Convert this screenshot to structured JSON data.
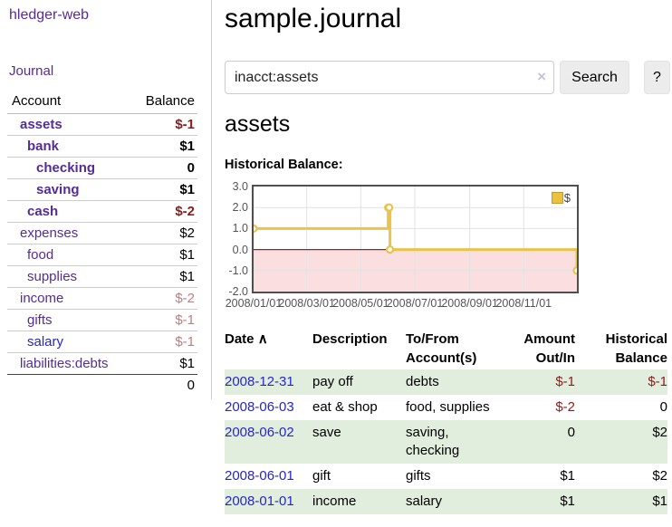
{
  "colors": {
    "link_purple": "#552b9a",
    "link_blue": "#2525d0",
    "negative_dark": "#8f1a1a",
    "negative_light": "#bd7d7d",
    "row_stripe_green": "#e2eedd",
    "chart_gold": "#e9c34c",
    "chart_negative_region_pink": "#fbdfe0",
    "chart_zero_line_red": "#a02222",
    "button_gray": "#ececec"
  },
  "sidebar": {
    "title": "hledger-web",
    "journal_link": "Journal",
    "accounts": {
      "headers": {
        "account": "Account",
        "balance": "Balance"
      },
      "rows": [
        {
          "name": "assets",
          "balance": "$-1"
        },
        {
          "name": "bank",
          "balance": "$1"
        },
        {
          "name": "checking",
          "balance": "0"
        },
        {
          "name": "saving",
          "balance": "$1"
        },
        {
          "name": "cash",
          "balance": "$-2"
        },
        {
          "name": "expenses",
          "balance": "$2"
        },
        {
          "name": "food",
          "balance": "$1"
        },
        {
          "name": "supplies",
          "balance": "$1"
        },
        {
          "name": "income",
          "balance": "$-2"
        },
        {
          "name": "gifts",
          "balance": "$-1"
        },
        {
          "name": "salary",
          "balance": "$-1"
        },
        {
          "name": "liabilities:debts",
          "balance": "$1"
        }
      ],
      "total": "0"
    }
  },
  "main": {
    "title": "sample.journal",
    "search": {
      "value": "inacct:assets",
      "clear_icon": "×",
      "button_label": "Search",
      "help_label": "?"
    },
    "account_heading": "assets",
    "chart_title": "Historical Balance:"
  },
  "chart_data": {
    "type": "line",
    "title": "Historical Balance:",
    "step": true,
    "negative_region_shaded": true,
    "legend": [
      {
        "label": "$",
        "color": "#eac23f"
      }
    ],
    "legend_position": "top-right",
    "grid": true,
    "ylim": [
      -2,
      3
    ],
    "y_ticks": [
      3.0,
      2.0,
      1.0,
      0.0,
      -1.0,
      -2.0
    ],
    "x_range": [
      "2008/01/01",
      "2008/12/31"
    ],
    "x_ticks": [
      "2008/01/01",
      "2008/03/01",
      "2008/05/01",
      "2008/07/01",
      "2008/09/01",
      "2008/11/01"
    ],
    "series": [
      {
        "name": "$",
        "points": [
          [
            "2008/01/01",
            1
          ],
          [
            "2008/06/01",
            2
          ],
          [
            "2008/06/02",
            2
          ],
          [
            "2008/06/03",
            0
          ],
          [
            "2008/12/31",
            -1
          ]
        ]
      }
    ]
  },
  "register": {
    "headers": {
      "date": "Date",
      "sort_icon": "∧",
      "description": "Description",
      "accounts": "To/From Account(s)",
      "amount": "Amount Out/In",
      "balance": "Historical Balance"
    },
    "rows": [
      {
        "date": "2008-12-31",
        "description": "pay off",
        "accounts": "debts",
        "amount": "$-1",
        "balance": "$-1"
      },
      {
        "date": "2008-06-03",
        "description": "eat & shop",
        "accounts": "food, supplies",
        "amount": "$-2",
        "balance": "0"
      },
      {
        "date": "2008-06-02",
        "description": "save",
        "accounts": "saving, checking",
        "amount": "0",
        "balance": "$2"
      },
      {
        "date": "2008-06-01",
        "description": "gift",
        "accounts": "gifts",
        "amount": "$1",
        "balance": "$2"
      },
      {
        "date": "2008-01-01",
        "description": "income",
        "accounts": "salary",
        "amount": "$1",
        "balance": "$1"
      }
    ]
  }
}
